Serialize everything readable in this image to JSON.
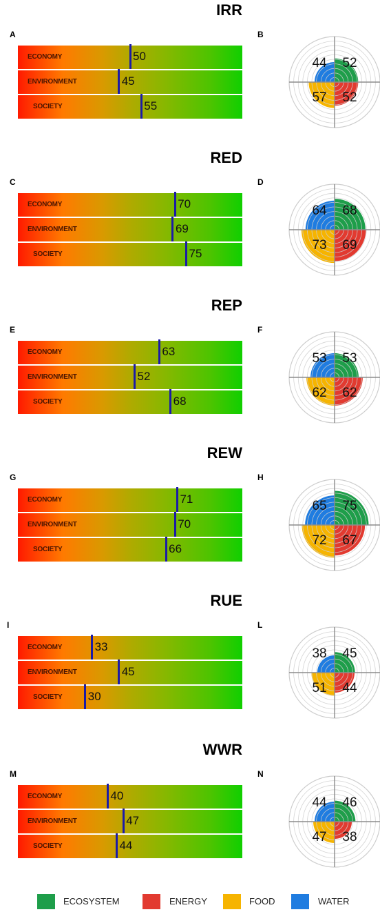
{
  "colors": {
    "ecosystem": "#1e9e4a",
    "energy": "#e23a30",
    "food": "#f6b400",
    "water": "#1f7ce0",
    "marker": "#1b1ba8"
  },
  "chart_data": [
    {
      "type": "bar",
      "title": "IRR",
      "panel_bar": "A",
      "panel_radar": "B",
      "categories": [
        "ECONOMY",
        "ENVIRONMENT",
        "SOCIETY"
      ],
      "values": [
        50,
        45,
        55
      ],
      "xlim": [
        0,
        100
      ],
      "radar": {
        "water": 44,
        "ecosystem": 52,
        "food": 57,
        "energy": 52
      }
    },
    {
      "type": "bar",
      "title": "RED",
      "panel_bar": "C",
      "panel_radar": "D",
      "categories": [
        "ECONOMY",
        "ENVIRONMENT",
        "SOCIETY"
      ],
      "values": [
        70,
        69,
        75
      ],
      "xlim": [
        0,
        100
      ],
      "radar": {
        "water": 64,
        "ecosystem": 68,
        "food": 73,
        "energy": 69
      }
    },
    {
      "type": "bar",
      "title": "REP",
      "panel_bar": "E",
      "panel_radar": "F",
      "categories": [
        "ECONOMY",
        "ENVIRONMENT",
        "SOCIETY"
      ],
      "values": [
        63,
        52,
        68
      ],
      "xlim": [
        0,
        100
      ],
      "radar": {
        "water": 53,
        "ecosystem": 53,
        "food": 62,
        "energy": 62
      }
    },
    {
      "type": "bar",
      "title": "REW",
      "panel_bar": "G",
      "panel_radar": "H",
      "categories": [
        "ECONOMY",
        "ENVIRONMENT",
        "SOCIETY"
      ],
      "values": [
        71,
        70,
        66
      ],
      "xlim": [
        0,
        100
      ],
      "radar": {
        "water": 65,
        "ecosystem": 75,
        "food": 72,
        "energy": 67
      }
    },
    {
      "type": "bar",
      "title": "RUE",
      "panel_bar": "I",
      "panel_radar": "L",
      "categories": [
        "ECONOMY",
        "ENVIRONMENT",
        "SOCIETY"
      ],
      "values": [
        33,
        45,
        30
      ],
      "xlim": [
        0,
        100
      ],
      "radar": {
        "water": 38,
        "ecosystem": 45,
        "food": 51,
        "energy": 44
      }
    },
    {
      "type": "bar",
      "title": "WWR",
      "panel_bar": "M",
      "panel_radar": "N",
      "categories": [
        "ECONOMY",
        "ENVIRONMENT",
        "SOCIETY"
      ],
      "values": [
        40,
        47,
        44
      ],
      "xlim": [
        0,
        100
      ],
      "radar": {
        "water": 44,
        "ecosystem": 46,
        "food": 47,
        "energy": 38
      }
    }
  ],
  "legend": [
    {
      "key": "ecosystem",
      "label": "ECOSYSTEM"
    },
    {
      "key": "energy",
      "label": "ENERGY"
    },
    {
      "key": "food",
      "label": "FOOD"
    },
    {
      "key": "water",
      "label": "WATER"
    }
  ]
}
